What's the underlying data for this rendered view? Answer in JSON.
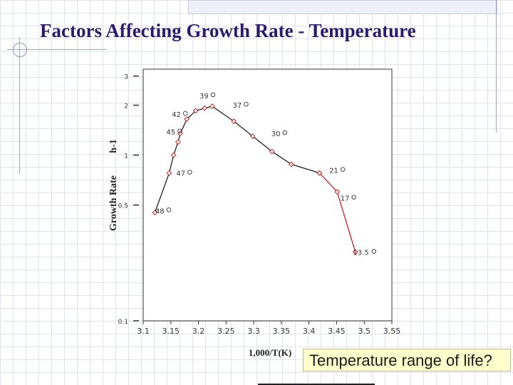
{
  "slide": {
    "title": "Factors Affecting Growth Rate - Temperature",
    "callout": "Temperature range of life?"
  },
  "colors": {
    "title": "#2b1a6f",
    "black_series": "#222222",
    "red_series": "#cc2222",
    "markers": "#cc2222"
  },
  "chart_data": {
    "type": "line",
    "title": "",
    "xlabel": "1,000/T(K)",
    "ylabel": "Growth Rate",
    "ylabel_unit": "h-1",
    "y_scale": "log",
    "xlim": [
      3.1,
      3.55
    ],
    "ylim": [
      0.1,
      3.3
    ],
    "x_ticks": [
      "3.1",
      "3.15",
      "3.2",
      "3.25",
      "3.3",
      "3.35",
      "3.4",
      "3.45",
      "3.5",
      "3.55"
    ],
    "y_ticks": [
      {
        "value": 0.1,
        "label": "0.1"
      },
      {
        "value": 0.5,
        "label": "0.5"
      },
      {
        "value": 1,
        "label": "1"
      },
      {
        "value": 2,
        "label": "2"
      },
      {
        "value": 3,
        "label": "3"
      }
    ],
    "series": [
      {
        "color": "#222222",
        "points": [
          {
            "x": 3.121,
            "y": 0.45
          },
          {
            "x": 3.147,
            "y": 0.78
          },
          {
            "x": 3.155,
            "y": 1.0
          },
          {
            "x": 3.163,
            "y": 1.2
          },
          {
            "x": 3.167,
            "y": 1.35
          },
          {
            "x": 3.179,
            "y": 1.65
          },
          {
            "x": 3.195,
            "y": 1.85
          },
          {
            "x": 3.211,
            "y": 1.92
          },
          {
            "x": 3.225,
            "y": 1.97
          },
          {
            "x": 3.264,
            "y": 1.6
          },
          {
            "x": 3.298,
            "y": 1.3
          },
          {
            "x": 3.333,
            "y": 1.05
          },
          {
            "x": 3.368,
            "y": 0.88
          },
          {
            "x": 3.419,
            "y": 0.78
          }
        ]
      },
      {
        "color": "#cc2222",
        "points": [
          {
            "x": 3.419,
            "y": 0.78
          },
          {
            "x": 3.451,
            "y": 0.6
          },
          {
            "x": 3.484,
            "y": 0.26
          }
        ]
      }
    ],
    "annotations": [
      {
        "text": "39",
        "x": 3.21,
        "y": 2.2,
        "circle": true
      },
      {
        "text": "37",
        "x": 3.27,
        "y": 1.93,
        "circle": true
      },
      {
        "text": "42",
        "x": 3.16,
        "y": 1.7,
        "circle": true
      },
      {
        "text": "45",
        "x": 3.15,
        "y": 1.33,
        "circle": true
      },
      {
        "text": "30",
        "x": 3.34,
        "y": 1.3,
        "circle": true
      },
      {
        "text": "47",
        "x": 3.168,
        "y": 0.75,
        "circle": true
      },
      {
        "text": "21",
        "x": 3.445,
        "y": 0.78,
        "circle": true
      },
      {
        "text": "17",
        "x": 3.465,
        "y": 0.53,
        "circle": true
      },
      {
        "text": "48",
        "x": 3.13,
        "y": 0.445,
        "circle": true
      },
      {
        "text": "13.5",
        "x": 3.494,
        "y": 0.25,
        "circle": true
      }
    ]
  }
}
